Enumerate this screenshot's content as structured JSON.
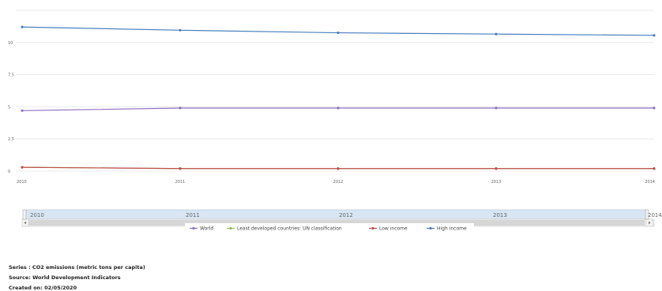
{
  "chart_data": {
    "type": "line",
    "x": [
      "2010",
      "2011",
      "2012",
      "2013",
      "2014"
    ],
    "y_ticks": [
      "0",
      "2.5",
      "5",
      "7.5",
      "10"
    ],
    "ylim": [
      0,
      12.5
    ],
    "grid": true,
    "legend_placement": "bottom-center",
    "series": [
      {
        "name": "World",
        "values": [
          4.7,
          4.9,
          4.9,
          4.9,
          4.9
        ],
        "color": "#8e6fc2"
      },
      {
        "name": "Least developed countries: UN classification",
        "values": [
          0.3,
          0.2,
          0.2,
          0.2,
          0.2
        ],
        "color": "#8cc152"
      },
      {
        "name": "Low income",
        "values": [
          0.3,
          0.2,
          0.2,
          0.2,
          0.2
        ],
        "color": "#c0504d"
      },
      {
        "name": "High income",
        "values": [
          11.2,
          10.95,
          10.75,
          10.65,
          10.55
        ],
        "color": "#4a7fbf"
      }
    ]
  },
  "navigator": {
    "labels": [
      "2010",
      "2011",
      "2012",
      "2013",
      "2014"
    ]
  },
  "footer": {
    "series": "Series : CO2 emissions (metric tons per capita)",
    "source": "Source: World Development Indicators",
    "created": "Created on: 02/05/2020"
  }
}
